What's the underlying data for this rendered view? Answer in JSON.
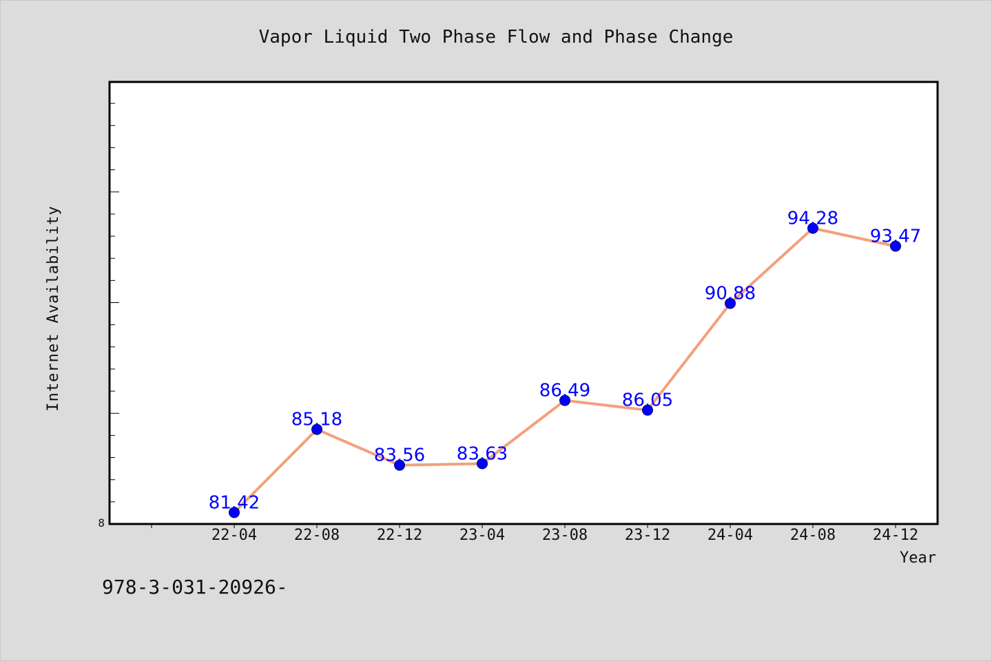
{
  "chart_data": {
    "type": "line",
    "title": "Vapor Liquid Two Phase Flow and Phase Change",
    "xlabel": "Year",
    "ylabel": "Internet Availability",
    "x": [
      "22-04",
      "22-08",
      "22-12",
      "23-04",
      "23-08",
      "23-12",
      "24-04",
      "24-08",
      "24-12"
    ],
    "series": [
      {
        "values": [
          81.42,
          85.18,
          83.56,
          83.63,
          86.49,
          86.05,
          90.88,
          94.28,
          93.47
        ],
        "labels": [
          "81.42",
          "85.18",
          "83.56",
          "83.63",
          "86.49",
          "86.05",
          "90.88",
          "94.28",
          "93.47"
        ]
      }
    ],
    "ylim": [
      80.9,
      100.9
    ],
    "y_tick_labels": [
      "8"
    ],
    "grid": false,
    "line_color": "#f4a07c",
    "marker_color": "#0000ff",
    "label_color": "#0000ff"
  },
  "footer": {
    "text": "978-3-031-20926-"
  }
}
